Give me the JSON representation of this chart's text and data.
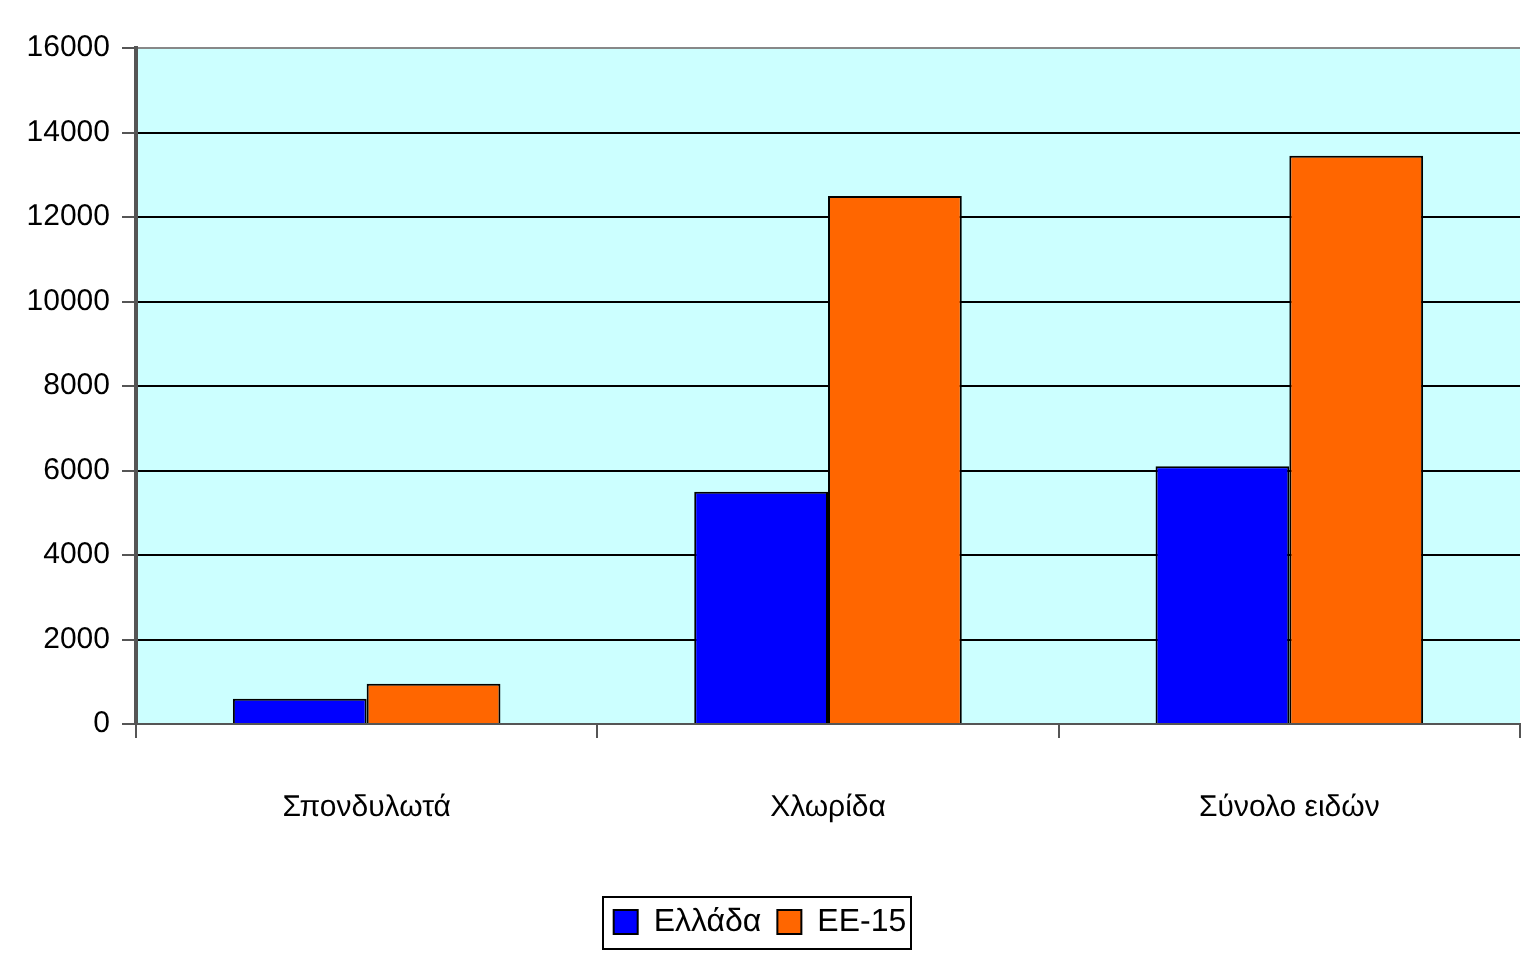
{
  "chart_data": {
    "type": "bar",
    "categories": [
      "Σπονδυλωτά",
      "Χλωρίδα",
      "Σύνολο ειδών"
    ],
    "series": [
      {
        "name": "Ελλάδα",
        "color": "#0000ff",
        "values": [
          600,
          5500,
          6100
        ]
      },
      {
        "name": "ΕΕ-15",
        "color": "#ff6600",
        "values": [
          950,
          12500,
          13450
        ]
      }
    ],
    "ylim": [
      0,
      16000
    ],
    "yticks": [
      0,
      2000,
      4000,
      6000,
      8000,
      10000,
      12000,
      14000,
      16000
    ],
    "grid": "y",
    "legend": "bottom"
  }
}
